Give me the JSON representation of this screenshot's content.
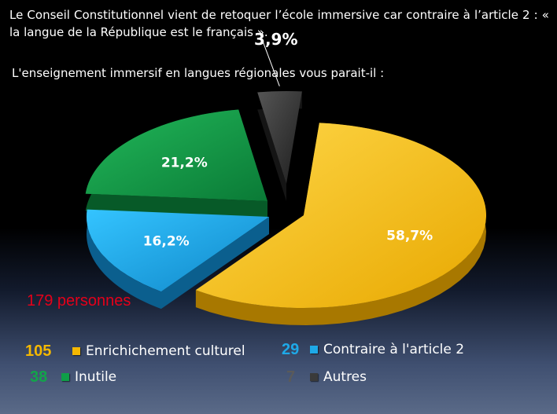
{
  "text": {
    "intro": "Le Conseil Constitutionnel vient de retoquer l’école immersive car contraire à l’article 2 :  « la langue de la République est le français ».",
    "question": "L'enseignement immersif en langues régionales vous parait-il :",
    "total": "179  personnes"
  },
  "chart_data": {
    "type": "pie",
    "title": "",
    "categories": [
      "Enrichichement culturel",
      "Contraire à l'article 2",
      "Inutile",
      "Autres"
    ],
    "values": [
      58.7,
      16.2,
      21.2,
      3.9
    ],
    "labels": [
      "58,7%",
      "16,2%",
      "21,2%",
      "3,9%"
    ],
    "counts": [
      "105",
      "29",
      "38",
      "7"
    ],
    "colors": [
      "#f5b800",
      "#1ea9e8",
      "#0f9e48",
      "#3a3a3a"
    ],
    "exploded": true,
    "legend_placement": "bottom"
  },
  "legend": [
    {
      "count": "105",
      "label": "Enrichichement culturel",
      "color": "#f5b800",
      "count_color": "#f5b800"
    },
    {
      "count": "29",
      "label": "Contraire à l'article 2",
      "color": "#1ea9e8",
      "count_color": "#1ea9e8"
    },
    {
      "count": "38",
      "label": "Inutile",
      "color": "#0f9e48",
      "count_color": "#12a54a"
    },
    {
      "count": "7",
      "label": "Autres",
      "color": "#3a3a3a",
      "count_color": "#5a5a5a"
    }
  ]
}
